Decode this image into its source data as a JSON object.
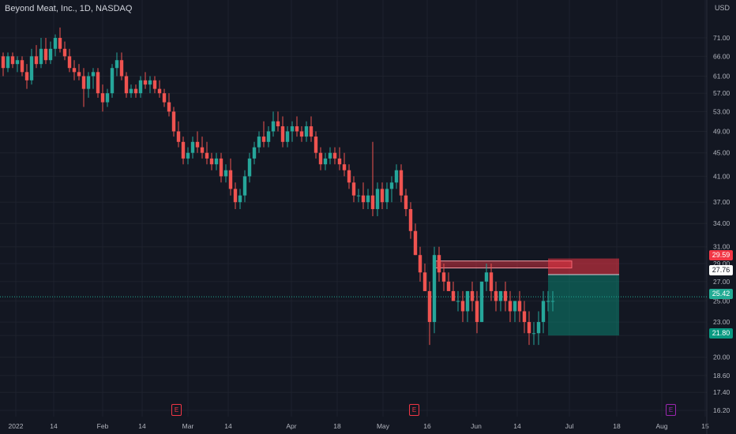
{
  "header": {
    "title": "Beyond Meat, Inc., 1D, NASDAQ",
    "currency": "USD"
  },
  "colors": {
    "up": "#26a69a",
    "down": "#ef5350",
    "background": "#131722",
    "grid": "#1e222d"
  },
  "price_tags": {
    "stop": "29.59",
    "entry": "27.76",
    "last": "25.42",
    "target": "21.80"
  },
  "earnings_markers": [
    "E",
    "E",
    "E"
  ],
  "chart_data": {
    "type": "candlestick",
    "title": "Beyond Meat, Inc., 1D, NASDAQ",
    "y_scale": "log",
    "ylim": [
      15.8,
      78
    ],
    "y_ticks": [
      16.2,
      17.4,
      18.6,
      20.0,
      21.8,
      23.0,
      25.0,
      27.0,
      29.0,
      31.0,
      34.0,
      37.0,
      41.0,
      45.0,
      49.0,
      53.0,
      57.0,
      61.0,
      66.0,
      71.0
    ],
    "y_tick_labels": [
      "16.20",
      "17.40",
      "18.60",
      "20.00",
      "21.80",
      "23.00",
      "25.00",
      "27.00",
      "29.00",
      "31.00",
      "34.00",
      "37.00",
      "41.00",
      "45.00",
      "49.00",
      "53.00",
      "57.00",
      "61.00",
      "66.00",
      "71.00"
    ],
    "x_tick_labels": [
      "2022",
      "14",
      "Feb",
      "14",
      "Mar",
      "14",
      "Apr",
      "18",
      "May",
      "16",
      "Jun",
      "14",
      "Jul",
      "18",
      "Aug",
      "15"
    ],
    "candles": [
      [
        66,
        67,
        61,
        63
      ],
      [
        63,
        67,
        62,
        66
      ],
      [
        66,
        67,
        63,
        64
      ],
      [
        64,
        66,
        62,
        65
      ],
      [
        65,
        66,
        61,
        62
      ],
      [
        62,
        64,
        58,
        60
      ],
      [
        60,
        68,
        59,
        66
      ],
      [
        66,
        69,
        63,
        64
      ],
      [
        64,
        71,
        63,
        68
      ],
      [
        68,
        71,
        64,
        65
      ],
      [
        65,
        70,
        64,
        68
      ],
      [
        68,
        72,
        66,
        71
      ],
      [
        71,
        74,
        67,
        68
      ],
      [
        68,
        70,
        65,
        66
      ],
      [
        66,
        68,
        62,
        63
      ],
      [
        63,
        65,
        60,
        62
      ],
      [
        62,
        64,
        60,
        61
      ],
      [
        61,
        63,
        54,
        58
      ],
      [
        58,
        62,
        56,
        61
      ],
      [
        61,
        63,
        58,
        62
      ],
      [
        62,
        63,
        56,
        57
      ],
      [
        57,
        59,
        53,
        55
      ],
      [
        55,
        58,
        54,
        57
      ],
      [
        57,
        64,
        56,
        63
      ],
      [
        63,
        67,
        61,
        65
      ],
      [
        65,
        67,
        60,
        61
      ],
      [
        61,
        62,
        56,
        57
      ],
      [
        57,
        59,
        56,
        58
      ],
      [
        58,
        59,
        56,
        57
      ],
      [
        57,
        61,
        56,
        60
      ],
      [
        60,
        62,
        58,
        59
      ],
      [
        59,
        61,
        57,
        60
      ],
      [
        60,
        61,
        57,
        58
      ],
      [
        58,
        60,
        56,
        57
      ],
      [
        57,
        58,
        54,
        55
      ],
      [
        55,
        57,
        52,
        53
      ],
      [
        53,
        54,
        48,
        49
      ],
      [
        49,
        51,
        46,
        47
      ],
      [
        47,
        48,
        43,
        44
      ],
      [
        44,
        46,
        43,
        45
      ],
      [
        45,
        48,
        44,
        47
      ],
      [
        47,
        49,
        45,
        46
      ],
      [
        46,
        48,
        44,
        45
      ],
      [
        45,
        47,
        43,
        44
      ],
      [
        44,
        45,
        42,
        43
      ],
      [
        43,
        45,
        42,
        44
      ],
      [
        44,
        45,
        40,
        41
      ],
      [
        41,
        43,
        40,
        42
      ],
      [
        42,
        44,
        38,
        39
      ],
      [
        39,
        40,
        36,
        37
      ],
      [
        37,
        39,
        36,
        38
      ],
      [
        38,
        42,
        37,
        41
      ],
      [
        41,
        45,
        40,
        44
      ],
      [
        44,
        47,
        43,
        46
      ],
      [
        46,
        49,
        45,
        48
      ],
      [
        48,
        51,
        46,
        47
      ],
      [
        47,
        50,
        46,
        49
      ],
      [
        49,
        53,
        48,
        51
      ],
      [
        51,
        53,
        49,
        50
      ],
      [
        50,
        52,
        46,
        47
      ],
      [
        47,
        50,
        46,
        49
      ],
      [
        49,
        51,
        47,
        50
      ],
      [
        50,
        52,
        48,
        49
      ],
      [
        49,
        50,
        47,
        48
      ],
      [
        48,
        51,
        47,
        50
      ],
      [
        50,
        52,
        47,
        48
      ],
      [
        48,
        49,
        44,
        45
      ],
      [
        45,
        46,
        42,
        43
      ],
      [
        43,
        45,
        42,
        44
      ],
      [
        44,
        46,
        43,
        45
      ],
      [
        45,
        46,
        43,
        44
      ],
      [
        44,
        46,
        42,
        43
      ],
      [
        43,
        45,
        41,
        42
      ],
      [
        42,
        43,
        39,
        40
      ],
      [
        40,
        41,
        37,
        38
      ],
      [
        38,
        39,
        37,
        38
      ],
      [
        38,
        40,
        36,
        37
      ],
      [
        37,
        39,
        36,
        38
      ],
      [
        38,
        47,
        35,
        36
      ],
      [
        36,
        40,
        35,
        39
      ],
      [
        39,
        40,
        36,
        37
      ],
      [
        37,
        40,
        36,
        39
      ],
      [
        39,
        41,
        37,
        40
      ],
      [
        40,
        43,
        39,
        42
      ],
      [
        42,
        43,
        37,
        38
      ],
      [
        38,
        39,
        35,
        36
      ],
      [
        36,
        37,
        32,
        33
      ],
      [
        33,
        34,
        30,
        30
      ],
      [
        30,
        31,
        27,
        28
      ],
      [
        28,
        29,
        26,
        26
      ],
      [
        26,
        27,
        21,
        23
      ],
      [
        23,
        31,
        22,
        30
      ],
      [
        30,
        31,
        27,
        28
      ],
      [
        28,
        29,
        26,
        27
      ],
      [
        27,
        28,
        26,
        26
      ],
      [
        26,
        27,
        25,
        25
      ],
      [
        25,
        26,
        24,
        25
      ],
      [
        25,
        26,
        23,
        24
      ],
      [
        24,
        26,
        23,
        26
      ],
      [
        26,
        27,
        24,
        25
      ],
      [
        25,
        26,
        22,
        23
      ],
      [
        23,
        27,
        23,
        27
      ],
      [
        27,
        29,
        26,
        28
      ],
      [
        28,
        29,
        25,
        26
      ],
      [
        26,
        27,
        24,
        25
      ],
      [
        25,
        26,
        24,
        26
      ],
      [
        26,
        27,
        24,
        25
      ],
      [
        25,
        26,
        23,
        24
      ],
      [
        24,
        25,
        23,
        25
      ],
      [
        25,
        26,
        23,
        24
      ],
      [
        24,
        25,
        22,
        23
      ],
      [
        23,
        24,
        21,
        22
      ],
      [
        22,
        23,
        21,
        22
      ],
      [
        22,
        24,
        21,
        23
      ],
      [
        23,
        26,
        22,
        25
      ],
      [
        25,
        26,
        24,
        25
      ],
      [
        25,
        26,
        24,
        25
      ]
    ],
    "drawings": {
      "horizontal_zone": {
        "from": 28.5,
        "to": 29.3,
        "start_index": 91,
        "end_index": 120
      },
      "short_position": {
        "entry": 27.76,
        "stop": 29.59,
        "target": 21.8,
        "start_index": 115,
        "end_index": 130
      }
    },
    "current_price": 25.42
  }
}
